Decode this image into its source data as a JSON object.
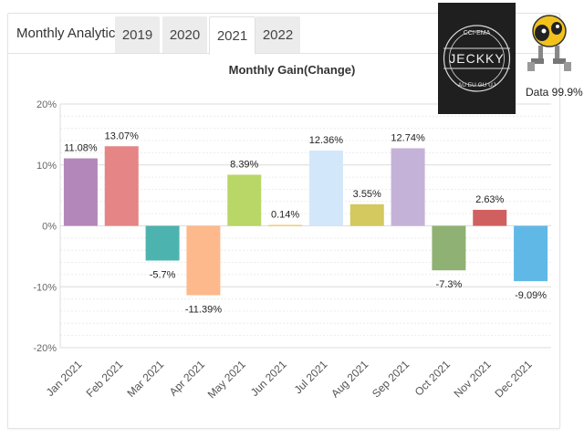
{
  "header": {
    "title": "Monthly Analytics",
    "tabs": [
      {
        "label": "2019",
        "active": false
      },
      {
        "label": "2020",
        "active": false
      },
      {
        "label": "2021",
        "active": true
      },
      {
        "label": "2022",
        "active": false
      }
    ]
  },
  "logo": {
    "ring_top": "CCI-EMA",
    "name": "JECKKY",
    "ring_bottom": "AU EU GU UJ",
    "caption": "Data 99.9%"
  },
  "chart_data": {
    "type": "bar",
    "title": "Monthly Gain(Change)",
    "xlabel": "",
    "ylabel": "",
    "ylim": [
      -20,
      20
    ],
    "yticks": [
      20,
      10,
      0,
      -10,
      -20
    ],
    "ytick_labels": [
      "20%",
      "10%",
      "0%",
      "-10%",
      "-20%"
    ],
    "grid": true,
    "categories": [
      "Jan 2021",
      "Feb 2021",
      "Mar 2021",
      "Apr 2021",
      "May 2021",
      "Jun 2021",
      "Jul 2021",
      "Aug 2021",
      "Sep 2021",
      "Oct 2021",
      "Nov 2021",
      "Dec 2021"
    ],
    "values": [
      11.08,
      13.07,
      -5.7,
      -11.39,
      8.39,
      0.14,
      12.36,
      3.55,
      12.74,
      -7.3,
      2.63,
      -9.09
    ],
    "labels": [
      "11.08%",
      "13.07%",
      "-5.7%",
      "-11.39%",
      "8.39%",
      "0.14%",
      "12.36%",
      "3.55%",
      "12.74%",
      "-7.3%",
      "2.63%",
      "-9.09%"
    ],
    "colors": [
      "#b387b9",
      "#e58585",
      "#4db3ae",
      "#fdb98c",
      "#b8d766",
      "#f5c342",
      "#d3e7fb",
      "#d3c95e",
      "#c4b2d8",
      "#8fb173",
      "#d06060",
      "#60b8e6"
    ]
  }
}
